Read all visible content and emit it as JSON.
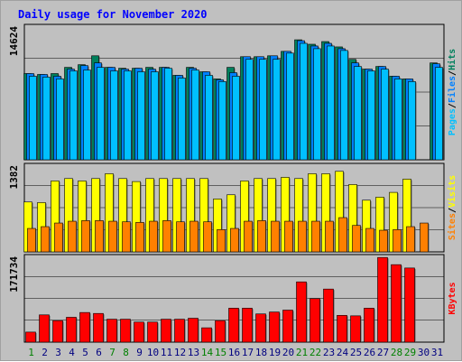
{
  "chart_data": {
    "type": "bar",
    "title": "Daily usage for November 2020",
    "categories": [
      "1",
      "2",
      "3",
      "4",
      "5",
      "6",
      "7",
      "8",
      "9",
      "10",
      "11",
      "12",
      "13",
      "14",
      "15",
      "16",
      "17",
      "18",
      "19",
      "20",
      "21",
      "22",
      "23",
      "24",
      "25",
      "26",
      "27",
      "28",
      "29",
      "30",
      "31"
    ],
    "weekend_days": [
      "1",
      "7",
      "8",
      "14",
      "15",
      "21",
      "22",
      "28",
      "29"
    ],
    "panels": [
      {
        "max_label": "14624",
        "ylim": [
          0,
          14624
        ],
        "legend": [
          "Pages",
          "Files",
          "Hits"
        ],
        "series": [
          {
            "name": "Hits",
            "values": [
              9700,
              9600,
              9700,
              10400,
              10700,
              11700,
              10400,
              10300,
              10300,
              10400,
              10400,
              9500,
              10400,
              9900,
              9100,
              10400,
              11600,
              11600,
              11700,
              12200,
              13500,
              13000,
              13300,
              12700,
              11300,
              10200,
              10500,
              9400,
              9100,
              null,
              10900
            ]
          },
          {
            "name": "Files",
            "values": [
              9700,
              9600,
              9400,
              10200,
              10600,
              10900,
              10400,
              10200,
              10300,
              10200,
              10400,
              9500,
              10300,
              9900,
              9000,
              9800,
              11600,
              11600,
              11700,
              12200,
              13400,
              12800,
              13100,
              12500,
              10900,
              10200,
              10500,
              9400,
              9100,
              null,
              10800
            ]
          },
          {
            "name": "Pages",
            "values": [
              9400,
              9300,
              9100,
              10000,
              10100,
              10400,
              10000,
              10000,
              9900,
              9900,
              10300,
              9200,
              10100,
              9500,
              8800,
              9400,
              11300,
              11300,
              11300,
              12000,
              13100,
              12500,
              12800,
              12300,
              10500,
              10000,
              10200,
              9100,
              8800,
              null,
              10400
            ]
          }
        ]
      },
      {
        "max_label": "1382",
        "ylim": [
          0,
          1382
        ],
        "legend": [
          "Sites",
          "Visits"
        ],
        "series": [
          {
            "name": "Visits",
            "values": [
              830,
              820,
              1180,
              1220,
              1180,
              1220,
              1300,
              1220,
              1170,
              1220,
              1220,
              1220,
              1220,
              1220,
              880,
              950,
              1180,
              1220,
              1220,
              1240,
              1220,
              1300,
              1300,
              1340,
              1120,
              860,
              910,
              990,
              1210,
              null,
              null
            ]
          },
          {
            "name": "Sites",
            "values": [
              390,
              420,
              480,
              510,
              520,
              520,
              510,
              500,
              490,
              510,
              520,
              500,
              510,
              500,
              370,
              390,
              510,
              520,
              510,
              510,
              510,
              510,
              510,
              570,
              440,
              390,
              360,
              370,
              420,
              480,
              null
            ]
          }
        ]
      },
      {
        "max_label": "171734",
        "ylim": [
          0,
          171734
        ],
        "legend": [
          "KBytes"
        ],
        "series": [
          {
            "name": "KBytes",
            "values": [
              21000,
              57000,
              45000,
              52000,
              62000,
              60000,
              48000,
              48000,
              42000,
              42000,
              48000,
              48000,
              50000,
              30000,
              45000,
              71000,
              71000,
              59000,
              63000,
              67000,
              126000,
              91000,
              111000,
              56000,
              55000,
              71000,
              177000,
              162000,
              155000,
              null,
              null
            ]
          }
        ]
      }
    ]
  },
  "colors": {
    "background": "#c0c0c0",
    "plot_bg": "#c0c0c0",
    "title": "#0000ff",
    "hits": "#00805c",
    "files": "#0080ff",
    "pages": "#00c0ff",
    "visits": "#ffff00",
    "sites": "#ff8000",
    "kbytes": "#ff0000",
    "day_weekday": "#000080",
    "day_weekend": "#008000"
  }
}
